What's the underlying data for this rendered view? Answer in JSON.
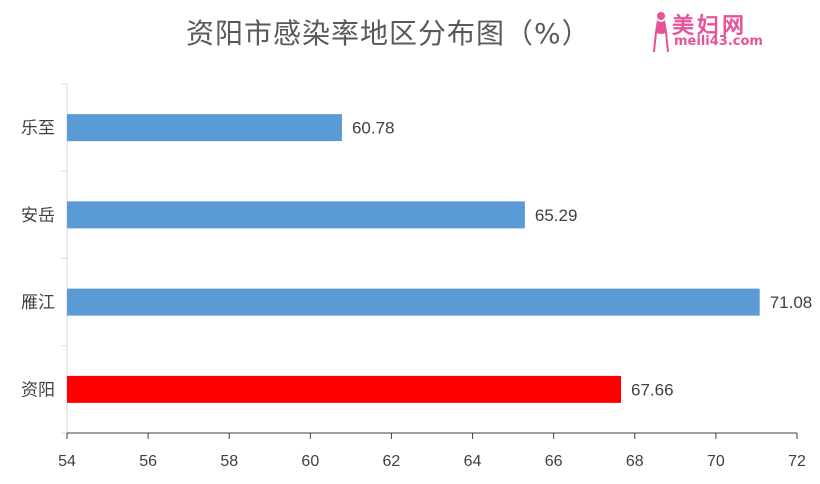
{
  "chart_data": {
    "type": "bar",
    "orientation": "horizontal",
    "title": "资阳市感染率地区分布图（%）",
    "categories": [
      "乐至",
      "安岳",
      "雁江",
      "资阳"
    ],
    "values": [
      60.78,
      65.29,
      71.08,
      67.66
    ],
    "value_labels": [
      "60.78",
      "65.29",
      "71.08",
      "67.66"
    ],
    "bar_colors": [
      "#5b9bd5",
      "#5b9bd5",
      "#5b9bd5",
      "#ff0000"
    ],
    "xlim": [
      54,
      72
    ],
    "x_ticks": [
      "54",
      "56",
      "58",
      "60",
      "62",
      "64",
      "66",
      "68",
      "70",
      "72"
    ],
    "grid": false,
    "legend": "none"
  },
  "watermark": {
    "text": "美妇网",
    "url_text": "meili43.com",
    "color": "#e8529a"
  }
}
